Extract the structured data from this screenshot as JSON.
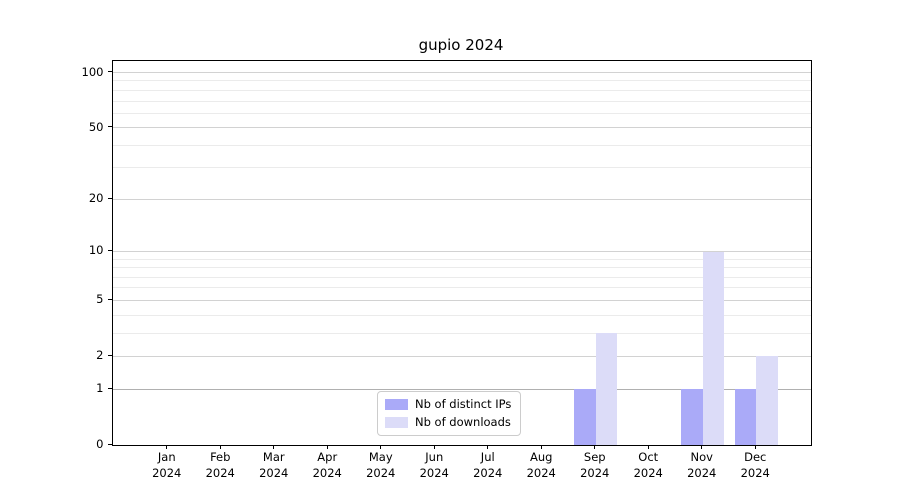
{
  "figure": {
    "background": "#ffffff",
    "frame_color": "#000000"
  },
  "chart_data": {
    "type": "bar",
    "title": "gupio 2024",
    "categories": [
      "Jan",
      "Feb",
      "Mar",
      "Apr",
      "May",
      "Jun",
      "Jul",
      "Aug",
      "Sep",
      "Oct",
      "Nov",
      "Dec"
    ],
    "category_year": "2024",
    "series": [
      {
        "name": "Nb of distinct IPs",
        "color": "#aaaaf8",
        "values": [
          0,
          0,
          0,
          0,
          0,
          0,
          0,
          0,
          1,
          0,
          1,
          1
        ]
      },
      {
        "name": "Nb of downloads",
        "color": "#dcdcf8",
        "values": [
          0,
          0,
          0,
          0,
          0,
          0,
          0,
          0,
          3,
          0,
          10,
          2
        ]
      }
    ],
    "xlabel": "",
    "ylabel": "",
    "scale": "log1p",
    "ylim": [
      0,
      117
    ],
    "yticks": [
      0,
      1,
      2,
      5,
      10,
      20,
      50,
      100
    ],
    "minor_yticks": [
      3,
      4,
      6,
      7,
      8,
      9,
      30,
      40,
      60,
      70,
      80,
      90
    ],
    "grid": true,
    "emphasized_gridline_value": 1,
    "legend_position": "bottom-center",
    "legend_entries": [
      "Nb of distinct IPs",
      "Nb of downloads"
    ]
  }
}
